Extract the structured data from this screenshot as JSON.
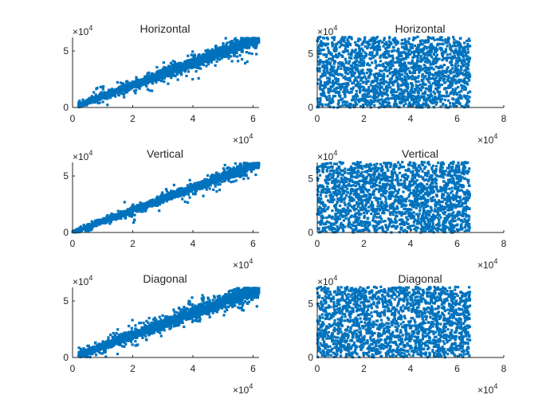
{
  "colors": {
    "marker": "#0072BD",
    "axis": "#262626",
    "background": "#ffffff"
  },
  "chart_data": [
    {
      "type": "scatter",
      "title": "Horizontal",
      "xlim": [
        0,
        62000
      ],
      "ylim": [
        0,
        62000
      ],
      "x_ticks": [
        0,
        2,
        4,
        6
      ],
      "y_ticks": [
        0,
        5
      ],
      "x_exponent": "×10",
      "x_exponent_power": "4",
      "y_exponent": "×10",
      "y_exponent_power": "4",
      "pattern": "correlated",
      "noise": 0.55,
      "outliers": 60,
      "n_points": 2200,
      "x_range": [
        2000,
        62000
      ],
      "seed": 11
    },
    {
      "type": "scatter",
      "title": "Horizontal",
      "xlim": [
        0,
        80000
      ],
      "ylim": [
        0,
        65000
      ],
      "x_ticks": [
        0,
        2,
        4,
        6,
        8
      ],
      "y_ticks": [
        0,
        5
      ],
      "x_exponent": "×10",
      "x_exponent_power": "4",
      "y_exponent": "×10",
      "y_exponent_power": "4",
      "pattern": "uniform",
      "n_points": 2000,
      "x_range": [
        0,
        65536
      ],
      "y_range": [
        0,
        65536
      ],
      "seed": 21
    },
    {
      "type": "scatter",
      "title": "Vertical",
      "xlim": [
        0,
        62000
      ],
      "ylim": [
        0,
        62000
      ],
      "x_ticks": [
        0,
        2,
        4,
        6
      ],
      "y_ticks": [
        0,
        5
      ],
      "x_exponent": "×10",
      "x_exponent_power": "4",
      "y_exponent": "×10",
      "y_exponent_power": "4",
      "pattern": "correlated",
      "noise": 0.4,
      "outliers": 60,
      "n_points": 2000,
      "x_range": [
        0,
        62000
      ],
      "seed": 31
    },
    {
      "type": "scatter",
      "title": "Vertical",
      "xlim": [
        0,
        80000
      ],
      "ylim": [
        0,
        65000
      ],
      "x_ticks": [
        0,
        2,
        4,
        6,
        8
      ],
      "y_ticks": [
        0,
        5
      ],
      "x_exponent": "×10",
      "x_exponent_power": "4",
      "y_exponent": "×10",
      "y_exponent_power": "4",
      "pattern": "uniform",
      "n_points": 2000,
      "x_range": [
        0,
        65536
      ],
      "y_range": [
        0,
        65536
      ],
      "seed": 41
    },
    {
      "type": "scatter",
      "title": "Diagonal",
      "xlim": [
        0,
        62000
      ],
      "ylim": [
        0,
        62000
      ],
      "x_ticks": [
        0,
        2,
        4,
        6
      ],
      "y_ticks": [
        0,
        5
      ],
      "x_exponent": "×10",
      "x_exponent_power": "4",
      "y_exponent": "×10",
      "y_exponent_power": "4",
      "pattern": "correlated",
      "noise": 0.65,
      "outliers": 80,
      "n_points": 2200,
      "x_range": [
        2000,
        62000
      ],
      "seed": 51
    },
    {
      "type": "scatter",
      "title": "Diagonal",
      "xlim": [
        0,
        80000
      ],
      "ylim": [
        0,
        65000
      ],
      "x_ticks": [
        0,
        2,
        4,
        6,
        8
      ],
      "y_ticks": [
        0,
        5
      ],
      "x_exponent": "×10",
      "x_exponent_power": "4",
      "y_exponent": "×10",
      "y_exponent_power": "4",
      "pattern": "uniform",
      "n_points": 2000,
      "x_range": [
        0,
        65536
      ],
      "y_range": [
        0,
        65536
      ],
      "seed": 61
    }
  ]
}
